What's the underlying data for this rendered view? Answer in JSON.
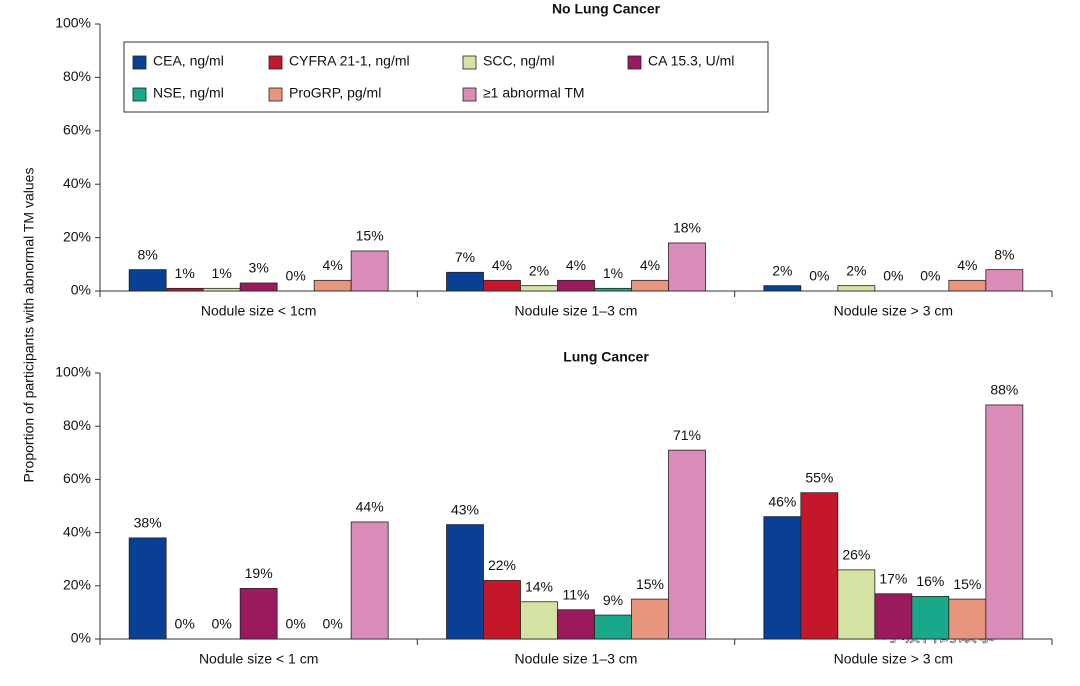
{
  "chart_data": [
    {
      "type": "bar",
      "title": "No Lung Cancer",
      "ylabel": "Proportion of participants with abnormal TM values",
      "categories": [
        "Nodule size < 1cm",
        "Nodule size 1–3 cm",
        "Nodule size > 3 cm"
      ],
      "ylim": [
        0,
        100
      ],
      "yticks": [
        {
          "value": 0,
          "label": "0%"
        },
        {
          "value": 20,
          "label": "20%"
        },
        {
          "value": 40,
          "label": "40%"
        },
        {
          "value": 60,
          "label": "60%"
        },
        {
          "value": 80,
          "label": "80%"
        },
        {
          "value": 100,
          "label": "100%"
        }
      ],
      "legend": "upper left",
      "series": [
        {
          "name": "CEA, ng/ml",
          "color": "#0a3f96",
          "values": [
            8,
            7,
            2
          ],
          "value_labels": [
            "8%",
            "7%",
            "2%"
          ]
        },
        {
          "name": "CYFRA 21-1, ng/ml",
          "color": "#c4172a",
          "values": [
            1,
            4,
            0
          ],
          "value_labels": [
            "1%",
            "4%",
            "0%"
          ]
        },
        {
          "name": "SCC, ng/ml",
          "color": "#d4e3a4",
          "values": [
            1,
            2,
            2
          ],
          "value_labels": [
            "1%",
            "2%",
            "2%"
          ]
        },
        {
          "name": "CA 15.3, U/ml",
          "color": "#9b1a5e",
          "values": [
            3,
            4,
            0
          ],
          "value_labels": [
            "3%",
            "4%",
            "0%"
          ]
        },
        {
          "name": "NSE, ng/ml",
          "color": "#1aa88a",
          "values": [
            0,
            1,
            0
          ],
          "value_labels": [
            "0%",
            "1%",
            "0%"
          ]
        },
        {
          "name": "ProGRP, pg/ml",
          "color": "#e8957e",
          "values": [
            4,
            4,
            4
          ],
          "value_labels": [
            "4%",
            "4%",
            "4%"
          ]
        },
        {
          "name": "≥1 abnormal TM",
          "color": "#d98cb8",
          "values": [
            15,
            18,
            8
          ],
          "value_labels": [
            "15%",
            "18%",
            "8%"
          ]
        }
      ]
    },
    {
      "type": "bar",
      "title": "Lung Cancer",
      "categories": [
        "Nodule size < 1 cm",
        "Nodule size 1–3 cm",
        "Nodule size > 3 cm"
      ],
      "ylim": [
        0,
        100
      ],
      "yticks": [
        {
          "value": 0,
          "label": "0%"
        },
        {
          "value": 20,
          "label": "20%"
        },
        {
          "value": 40,
          "label": "40%"
        },
        {
          "value": 60,
          "label": "60%"
        },
        {
          "value": 80,
          "label": "80%"
        },
        {
          "value": 100,
          "label": "100%"
        }
      ],
      "series": [
        {
          "color": "#0a3f96",
          "values": [
            38,
            43,
            46
          ],
          "value_labels": [
            "38%",
            "43%",
            "46%"
          ]
        },
        {
          "color": "#c4172a",
          "values": [
            0,
            22,
            55
          ],
          "value_labels": [
            "0%",
            "22%",
            "55%"
          ]
        },
        {
          "color": "#d4e3a4",
          "values": [
            0,
            14,
            26
          ],
          "value_labels": [
            "0%",
            "14%",
            "26%"
          ]
        },
        {
          "color": "#9b1a5e",
          "values": [
            19,
            11,
            17
          ],
          "value_labels": [
            "19%",
            "11%",
            "17%"
          ]
        },
        {
          "color": "#1aa88a",
          "values": [
            0,
            9,
            16
          ],
          "value_labels": [
            "0%",
            "9%",
            "16%"
          ]
        },
        {
          "color": "#e8957e",
          "values": [
            0,
            15,
            15
          ],
          "value_labels": [
            "0%",
            "15%",
            "15%"
          ]
        },
        {
          "color": "#d98cb8",
          "values": [
            44,
            71,
            88
          ],
          "value_labels": [
            "44%",
            "71%",
            "88%"
          ]
        }
      ]
    }
  ],
  "watermark": "呼吸科的故事"
}
